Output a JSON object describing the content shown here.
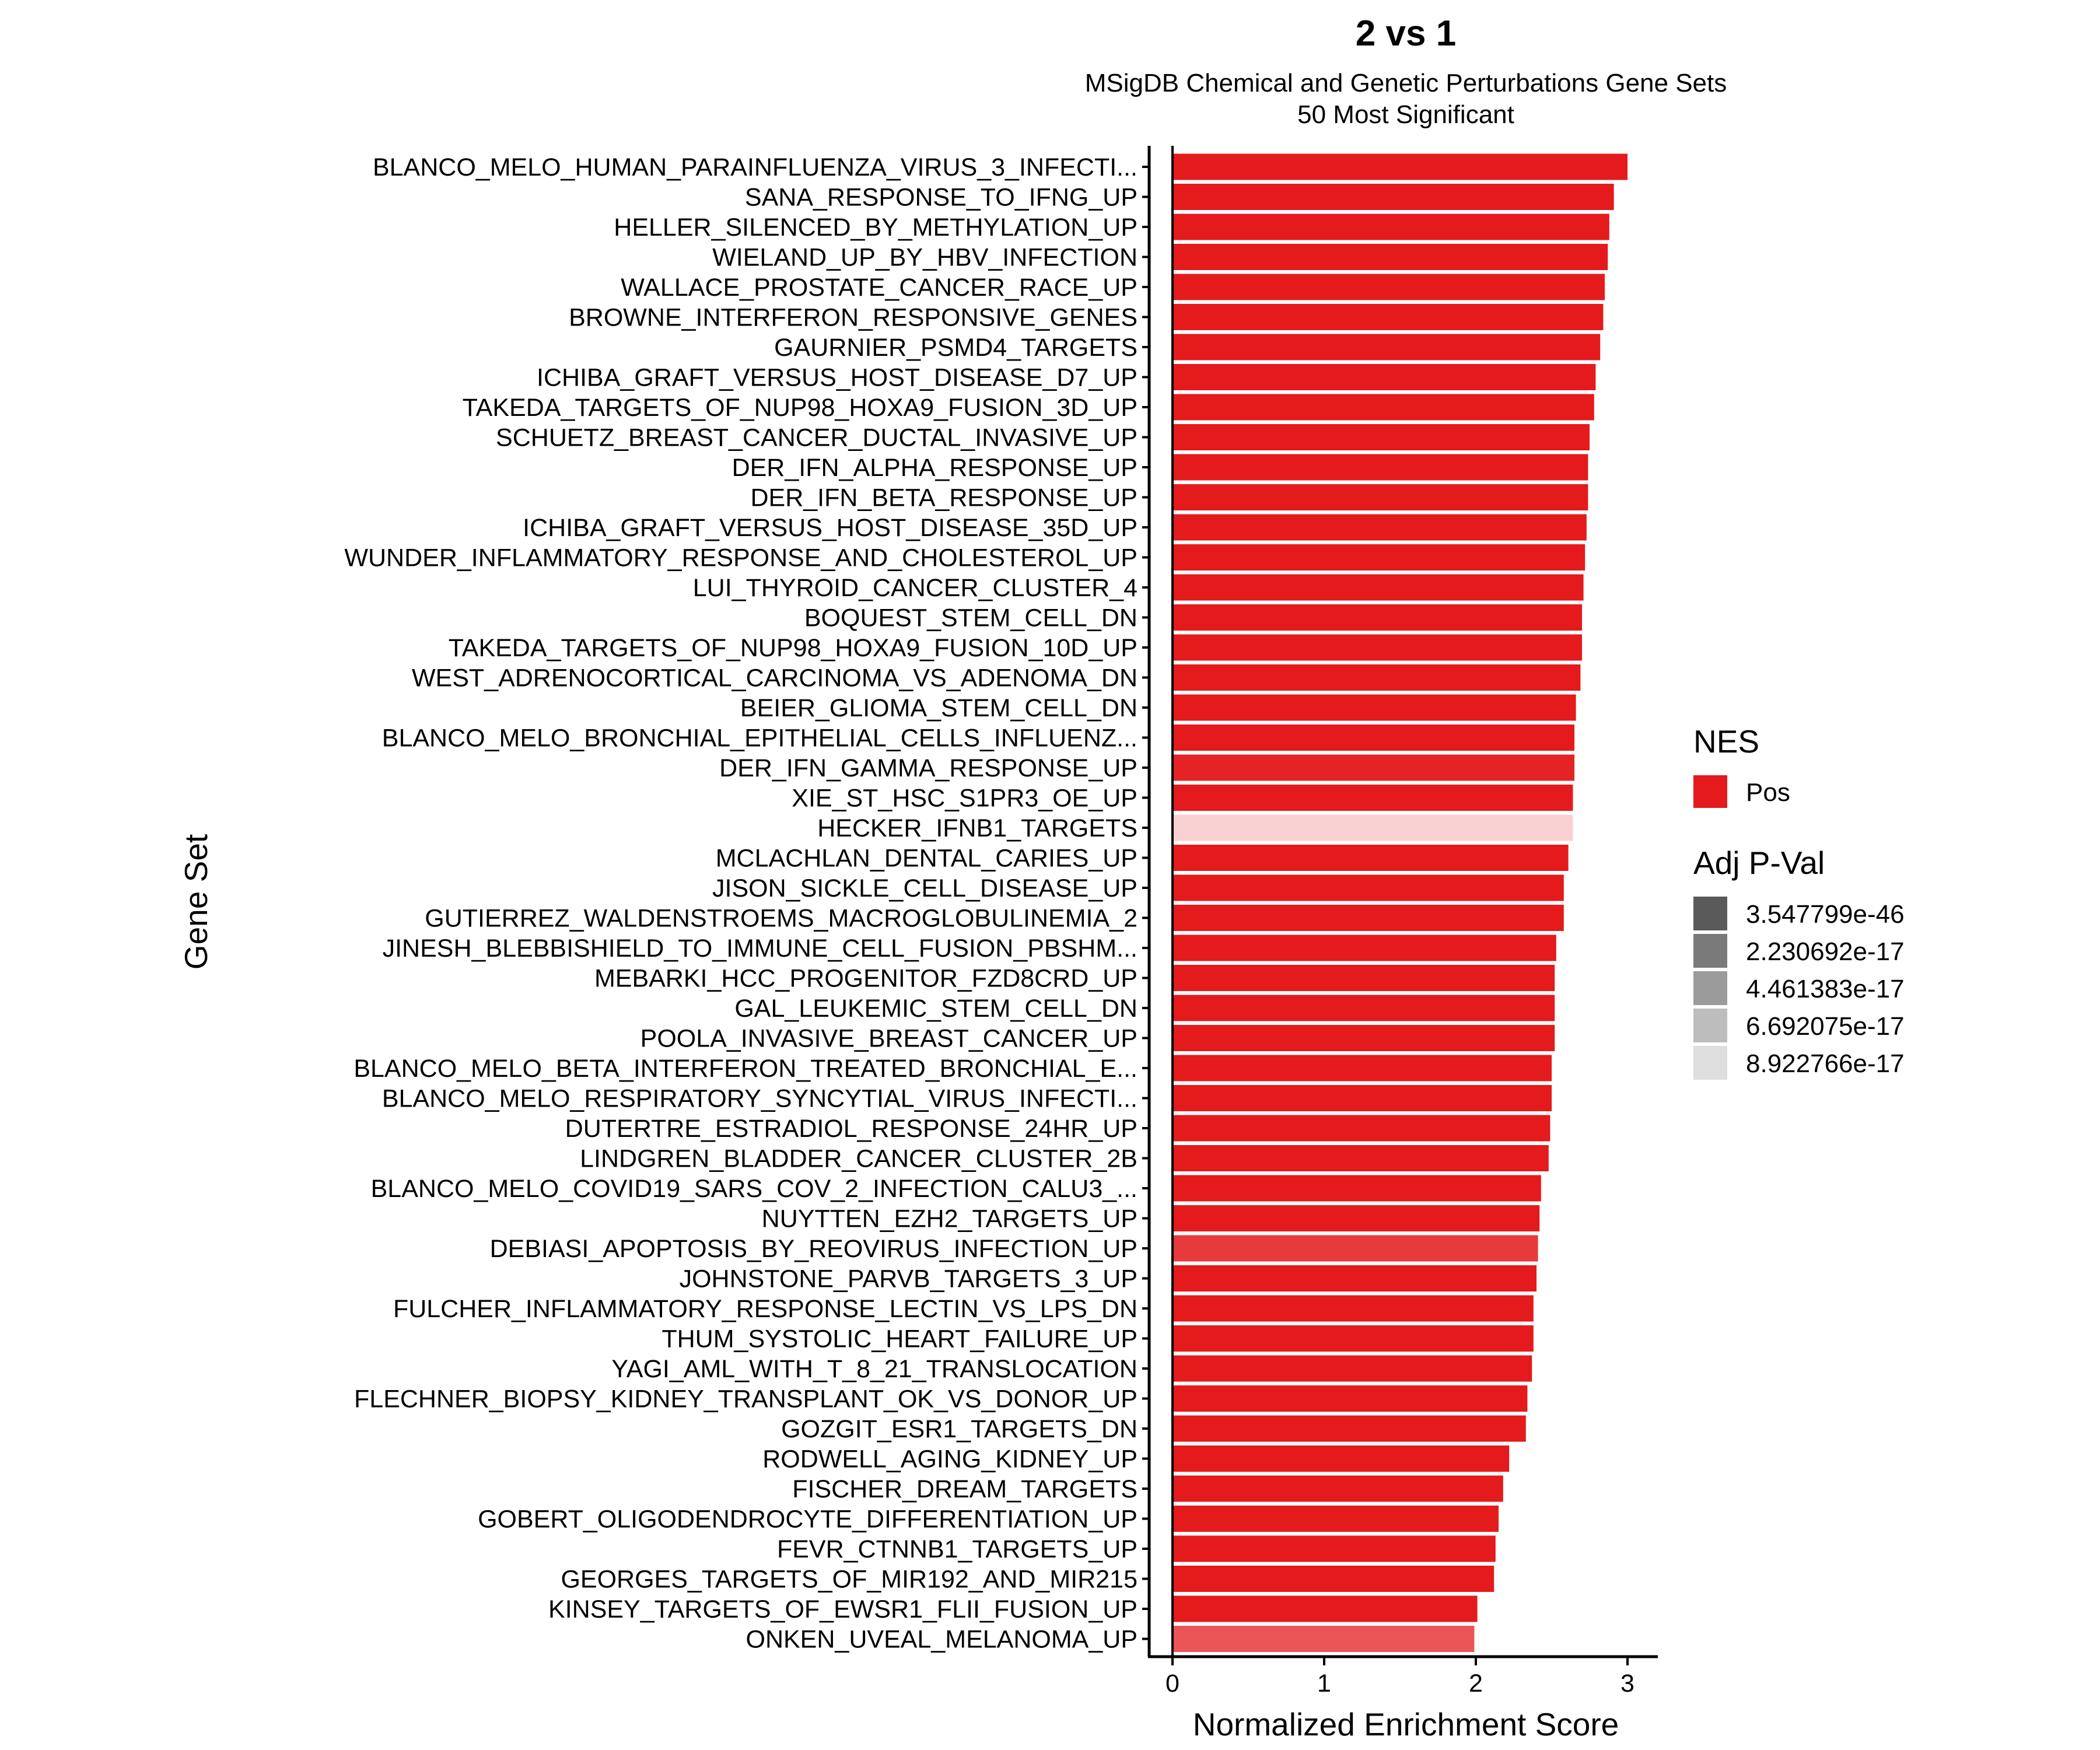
{
  "chart_data": {
    "type": "bar",
    "orientation": "horizontal",
    "title": "2 vs 1",
    "subtitle_lines": [
      "MSigDB Chemical and Genetic Perturbations Gene Sets",
      "50 Most Significant"
    ],
    "xlabel": "Normalized Enrichment Score",
    "ylabel": "Gene Set",
    "xlim": [
      0,
      3.15
    ],
    "xticks": [
      0,
      1,
      2,
      3
    ],
    "bar_color": "#E41A1C",
    "categories": [
      "BLANCO_MELO_HUMAN_PARAINFLUENZA_VIRUS_3_INFECTI...",
      "SANA_RESPONSE_TO_IFNG_UP",
      "HELLER_SILENCED_BY_METHYLATION_UP",
      "WIELAND_UP_BY_HBV_INFECTION",
      "WALLACE_PROSTATE_CANCER_RACE_UP",
      "BROWNE_INTERFERON_RESPONSIVE_GENES",
      "GAURNIER_PSMD4_TARGETS",
      "ICHIBA_GRAFT_VERSUS_HOST_DISEASE_D7_UP",
      "TAKEDA_TARGETS_OF_NUP98_HOXA9_FUSION_3D_UP",
      "SCHUETZ_BREAST_CANCER_DUCTAL_INVASIVE_UP",
      "DER_IFN_ALPHA_RESPONSE_UP",
      "DER_IFN_BETA_RESPONSE_UP",
      "ICHIBA_GRAFT_VERSUS_HOST_DISEASE_35D_UP",
      "WUNDER_INFLAMMATORY_RESPONSE_AND_CHOLESTEROL_UP",
      "LUI_THYROID_CANCER_CLUSTER_4",
      "BOQUEST_STEM_CELL_DN",
      "TAKEDA_TARGETS_OF_NUP98_HOXA9_FUSION_10D_UP",
      "WEST_ADRENOCORTICAL_CARCINOMA_VS_ADENOMA_DN",
      "BEIER_GLIOMA_STEM_CELL_DN",
      "BLANCO_MELO_BRONCHIAL_EPITHELIAL_CELLS_INFLUENZ...",
      "DER_IFN_GAMMA_RESPONSE_UP",
      "XIE_ST_HSC_S1PR3_OE_UP",
      "HECKER_IFNB1_TARGETS",
      "MCLACHLAN_DENTAL_CARIES_UP",
      "JISON_SICKLE_CELL_DISEASE_UP",
      "GUTIERREZ_WALDENSTROEMS_MACROGLOBULINEMIA_2",
      "JINESH_BLEBBISHIELD_TO_IMMUNE_CELL_FUSION_PBSHM...",
      "MEBARKI_HCC_PROGENITOR_FZD8CRD_UP",
      "GAL_LEUKEMIC_STEM_CELL_DN",
      "POOLA_INVASIVE_BREAST_CANCER_UP",
      "BLANCO_MELO_BETA_INTERFERON_TREATED_BRONCHIAL_E...",
      "BLANCO_MELO_RESPIRATORY_SYNCYTIAL_VIRUS_INFECTI...",
      "DUTERTRE_ESTRADIOL_RESPONSE_24HR_UP",
      "LINDGREN_BLADDER_CANCER_CLUSTER_2B",
      "BLANCO_MELO_COVID19_SARS_COV_2_INFECTION_CALU3_...",
      "NUYTTEN_EZH2_TARGETS_UP",
      "DEBIASI_APOPTOSIS_BY_REOVIRUS_INFECTION_UP",
      "JOHNSTONE_PARVB_TARGETS_3_UP",
      "FULCHER_INFLAMMATORY_RESPONSE_LECTIN_VS_LPS_DN",
      "THUM_SYSTOLIC_HEART_FAILURE_UP",
      "YAGI_AML_WITH_T_8_21_TRANSLOCATION",
      "FLECHNER_BIOPSY_KIDNEY_TRANSPLANT_OK_VS_DONOR_UP",
      "GOZGIT_ESR1_TARGETS_DN",
      "RODWELL_AGING_KIDNEY_UP",
      "FISCHER_DREAM_TARGETS",
      "GOBERT_OLIGODENDROCYTE_DIFFERENTIATION_UP",
      "FEVR_CTNNB1_TARGETS_UP",
      "GEORGES_TARGETS_OF_MIR192_AND_MIR215",
      "KINSEY_TARGETS_OF_EWSR1_FLII_FUSION_UP",
      "ONKEN_UVEAL_MELANOMA_UP"
    ],
    "values": [
      3.0,
      2.91,
      2.88,
      2.87,
      2.85,
      2.84,
      2.82,
      2.79,
      2.78,
      2.75,
      2.74,
      2.74,
      2.73,
      2.72,
      2.71,
      2.7,
      2.7,
      2.69,
      2.66,
      2.65,
      2.65,
      2.64,
      2.64,
      2.61,
      2.58,
      2.58,
      2.53,
      2.52,
      2.52,
      2.52,
      2.5,
      2.5,
      2.49,
      2.48,
      2.43,
      2.42,
      2.41,
      2.4,
      2.38,
      2.38,
      2.37,
      2.34,
      2.33,
      2.22,
      2.18,
      2.15,
      2.13,
      2.12,
      2.01,
      1.99
    ],
    "alpha": [
      1,
      1,
      1,
      1,
      1,
      1,
      1,
      1,
      1,
      1,
      1,
      1,
      1,
      1,
      1,
      1,
      1,
      1,
      1,
      1,
      0.96,
      1,
      0.2,
      1,
      1,
      1,
      1,
      1,
      1,
      1,
      1,
      1,
      1,
      1,
      1,
      1,
      0.86,
      1,
      1,
      1,
      1,
      1,
      1,
      1,
      1,
      1,
      1,
      1,
      1,
      0.74
    ],
    "legend": {
      "placement": "right",
      "nes": {
        "title": "NES",
        "items": [
          {
            "label": "Pos",
            "color": "#E41A1C"
          }
        ]
      },
      "pval": {
        "title": "Adj P-Val",
        "items": [
          {
            "label": "3.547799e-46",
            "color": "#5A5A5A"
          },
          {
            "label": "2.230692e-17",
            "color": "#7A7A7A"
          },
          {
            "label": "4.461383e-17",
            "color": "#9B9B9B"
          },
          {
            "label": "6.692075e-17",
            "color": "#BDBDBD"
          },
          {
            "label": "8.922766e-17",
            "color": "#DEDEDE"
          }
        ]
      }
    }
  }
}
